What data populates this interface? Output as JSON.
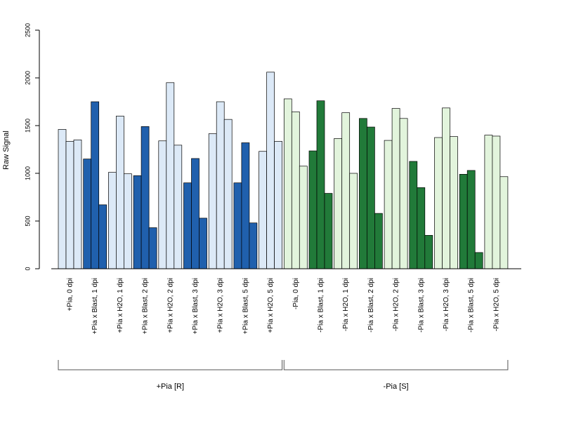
{
  "chart_data": {
    "type": "bar",
    "ylabel": "Raw Signal",
    "ylim": [
      0,
      2500
    ],
    "yticks": [
      0,
      500,
      1000,
      1500,
      2000,
      2500
    ],
    "grid": false,
    "bars_per_category": 3,
    "categories": [
      "+Pia, 0 dpi",
      "+Pia x Blast, 1 dpi",
      "+Pia x H2O, 1 dpi",
      "+Pia x Blast, 2 dpi",
      "+Pia x H2O, 2 dpi",
      "+Pia x Blast, 3 dpi",
      "+Pia x H2O, 3 dpi",
      "+Pia x Blast, 5 dpi",
      "+Pia x H2O, 5 dpi",
      "-Pia, 0 dpi",
      "-Pia x Blast, 1 dpi",
      "-Pia x H2O, 1 dpi",
      "-Pia x Blast, 2 dpi",
      "-Pia x H2O, 2 dpi",
      "-Pia x Blast, 3 dpi",
      "-Pia x H2O, 3 dpi",
      "-Pia x Blast, 5 dpi",
      "-Pia x H2O, 5 dpi"
    ],
    "values": [
      [
        1460,
        1335,
        1350
      ],
      [
        1150,
        1750,
        670
      ],
      [
        1010,
        1600,
        995
      ],
      [
        975,
        1490,
        430
      ],
      [
        1340,
        1950,
        1295
      ],
      [
        900,
        1155,
        530
      ],
      [
        1415,
        1750,
        1565
      ],
      [
        900,
        1320,
        480
      ],
      [
        1230,
        2060,
        1335
      ],
      [
        1780,
        1645,
        1075
      ],
      [
        1235,
        1760,
        790
      ],
      [
        1365,
        1635,
        1000
      ],
      [
        1575,
        1485,
        580
      ],
      [
        1345,
        1680,
        1575
      ],
      [
        1125,
        850,
        350
      ],
      [
        1375,
        1685,
        1385
      ],
      [
        990,
        1030,
        170
      ],
      [
        1400,
        1390,
        965
      ]
    ],
    "colors": {
      "plus_control": "#dce9f7",
      "plus_blast": "#2060ad",
      "minus_control": "#e2f4dc",
      "minus_blast": "#217a39",
      "outline": "#000000"
    },
    "groups": [
      {
        "label": "+Pia [R]",
        "first": 0,
        "last": 8
      },
      {
        "label": "-Pia [S]",
        "first": 9,
        "last": 17
      }
    ]
  }
}
